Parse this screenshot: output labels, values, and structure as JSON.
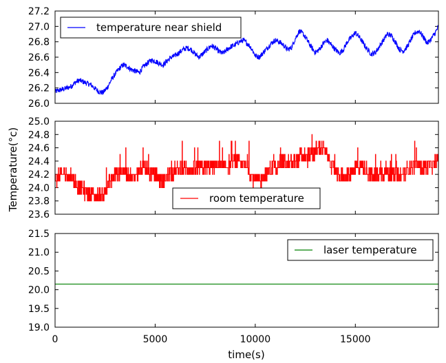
{
  "chart_data": {
    "type": "line",
    "shared_xlabel": "time(s)",
    "shared_ylabel": "Temperature(°c)",
    "x_range": [
      0,
      19150
    ],
    "x_ticks": [
      0,
      5000,
      10000,
      15000
    ],
    "x_tick_labels": [
      "0",
      "5000",
      "10000",
      "15000"
    ],
    "grid": false,
    "panels": [
      {
        "series": [
          {
            "name": "temperature near shield",
            "color": "#0000ff",
            "x": [
              0,
              200,
              500,
              800,
              1000,
              1200,
              1400,
              1600,
              1800,
              2000,
              2200,
              2400,
              2600,
              2800,
              3000,
              3200,
              3400,
              3600,
              3800,
              4000,
              4200,
              4400,
              4600,
              4800,
              5000,
              5200,
              5400,
              5600,
              5800,
              6000,
              6200,
              6400,
              6600,
              6800,
              7000,
              7200,
              7400,
              7600,
              7800,
              8000,
              8200,
              8400,
              8600,
              8800,
              9000,
              9200,
              9400,
              9600,
              9800,
              10000,
              10200,
              10400,
              10600,
              10800,
              11000,
              11200,
              11400,
              11600,
              11800,
              12000,
              12200,
              12400,
              12600,
              12800,
              13000,
              13200,
              13400,
              13600,
              13800,
              14000,
              14200,
              14400,
              14600,
              14800,
              15000,
              15200,
              15400,
              15600,
              15800,
              16000,
              16200,
              16400,
              16600,
              16800,
              17000,
              17200,
              17400,
              17600,
              17800,
              18000,
              18200,
              18400,
              18600,
              18800,
              19000,
              19150
            ],
            "y": [
              26.15,
              26.17,
              26.19,
              26.22,
              26.27,
              26.3,
              26.28,
              26.26,
              26.24,
              26.19,
              26.15,
              26.14,
              26.2,
              26.3,
              26.38,
              26.45,
              26.5,
              26.48,
              26.44,
              26.42,
              26.4,
              26.47,
              26.52,
              26.56,
              26.55,
              26.52,
              26.5,
              26.55,
              26.6,
              26.62,
              26.66,
              26.7,
              26.72,
              26.7,
              26.64,
              26.6,
              26.65,
              26.7,
              26.75,
              26.72,
              26.67,
              26.65,
              26.7,
              26.74,
              26.76,
              26.8,
              26.82,
              26.78,
              26.72,
              26.62,
              26.6,
              26.66,
              26.72,
              26.78,
              26.82,
              26.8,
              26.76,
              26.7,
              26.72,
              26.84,
              26.94,
              26.9,
              26.82,
              26.73,
              26.66,
              26.7,
              26.78,
              26.82,
              26.76,
              26.7,
              26.65,
              26.7,
              26.8,
              26.86,
              26.92,
              26.86,
              26.78,
              26.7,
              26.64,
              26.66,
              26.74,
              26.82,
              26.9,
              26.88,
              26.8,
              26.7,
              26.68,
              26.74,
              26.84,
              26.92,
              26.94,
              26.86,
              26.78,
              26.84,
              26.92,
              27.0
            ],
            "noise": 0.035
          }
        ],
        "ylim": [
          26.0,
          27.2
        ],
        "y_ticks": [
          26.0,
          26.2,
          26.4,
          26.6,
          26.8,
          27.0,
          27.2
        ],
        "y_tick_labels": [
          "26.0",
          "26.2",
          "26.4",
          "26.6",
          "26.8",
          "27.0",
          "27.2"
        ],
        "legend_placement": "upper-left"
      },
      {
        "series": [
          {
            "name": "room temperature",
            "color": "#ff0000",
            "x": [
              0,
              300,
              600,
              900,
              1200,
              1500,
              1800,
              2100,
              2400,
              2700,
              3000,
              3300,
              3600,
              3900,
              4200,
              4500,
              4800,
              5100,
              5400,
              5700,
              6000,
              6300,
              6600,
              6900,
              7200,
              7500,
              7800,
              8100,
              8400,
              8700,
              9000,
              9300,
              9600,
              9900,
              10200,
              10500,
              10800,
              11100,
              11400,
              11700,
              12000,
              12300,
              12600,
              12900,
              13200,
              13500,
              13800,
              14100,
              14400,
              14700,
              15000,
              15300,
              15600,
              15900,
              16200,
              16500,
              16800,
              17100,
              17400,
              17700,
              18000,
              18300,
              18600,
              18900,
              19150
            ],
            "y": [
              24.1,
              24.2,
              24.2,
              24.15,
              24.0,
              23.95,
              23.9,
              23.85,
              23.9,
              24.05,
              24.2,
              24.25,
              24.2,
              24.15,
              24.25,
              24.3,
              24.2,
              24.15,
              24.1,
              24.2,
              24.25,
              24.3,
              24.28,
              24.25,
              24.3,
              24.3,
              24.32,
              24.35,
              24.3,
              24.35,
              24.38,
              24.36,
              24.3,
              24.15,
              24.1,
              24.2,
              24.3,
              24.35,
              24.4,
              24.35,
              24.4,
              24.48,
              24.45,
              24.52,
              24.6,
              24.55,
              24.35,
              24.2,
              24.15,
              24.2,
              24.3,
              24.35,
              24.25,
              24.15,
              24.2,
              24.25,
              24.2,
              24.15,
              24.2,
              24.3,
              24.35,
              24.3,
              24.3,
              24.35,
              24.38
            ],
            "noise": 0.11
          }
        ],
        "ylim": [
          23.6,
          25.0
        ],
        "y_ticks": [
          23.6,
          23.8,
          24.0,
          24.2,
          24.4,
          24.6,
          24.8,
          25.0
        ],
        "y_tick_labels": [
          "23.6",
          "23.8",
          "24.0",
          "24.2",
          "24.4",
          "24.6",
          "24.8",
          "25.0"
        ],
        "legend_placement": "lower-center"
      },
      {
        "series": [
          {
            "name": "laser temperature",
            "color": "#008000",
            "x": [
              0,
              19150
            ],
            "y": [
              20.15,
              20.15
            ],
            "noise": 0
          }
        ],
        "ylim": [
          19.0,
          21.5
        ],
        "y_ticks": [
          19.0,
          19.5,
          20.0,
          20.5,
          21.0,
          21.5
        ],
        "y_tick_labels": [
          "19.0",
          "19.5",
          "20.0",
          "20.5",
          "21.0",
          "21.5"
        ],
        "legend_placement": "upper-right"
      }
    ]
  }
}
